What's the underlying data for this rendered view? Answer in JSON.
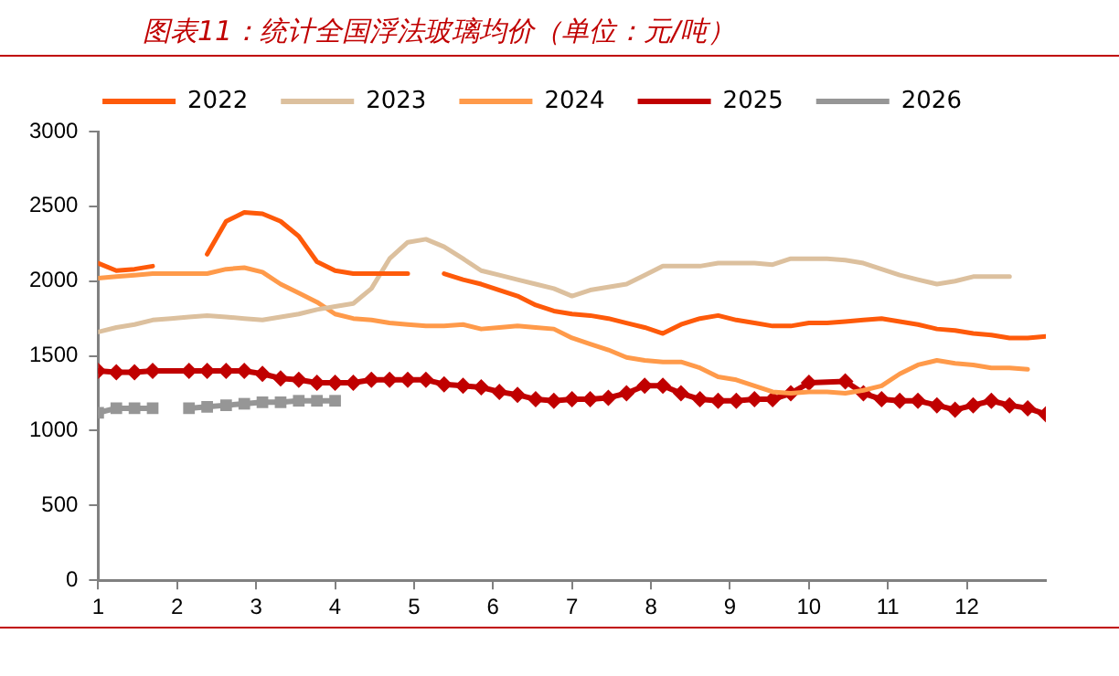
{
  "chart_data": {
    "type": "line",
    "title": "图表11：统计全国浮法玻璃均价（单位：元/吨）",
    "x": [
      1,
      1.23,
      1.46,
      1.69,
      1.92,
      2.15,
      2.38,
      2.62,
      2.85,
      3.08,
      3.31,
      3.54,
      3.77,
      4,
      4.23,
      4.46,
      4.69,
      4.92,
      5.15,
      5.38,
      5.62,
      5.85,
      6.08,
      6.31,
      6.54,
      6.77,
      7,
      7.23,
      7.46,
      7.69,
      7.92,
      8.15,
      8.38,
      8.62,
      8.85,
      9.08,
      9.31,
      9.54,
      9.77,
      10,
      10.23,
      10.46,
      10.69,
      10.92,
      11.15,
      11.38,
      11.62,
      11.85,
      12.08,
      12.31,
      12.54,
      12.77,
      13
    ],
    "xlim": [
      1,
      13
    ],
    "xticks": [
      1,
      2,
      3,
      4,
      5,
      6,
      7,
      8,
      9,
      10,
      11,
      12
    ],
    "ylim": [
      0,
      3000
    ],
    "yticks": [
      0,
      500,
      1000,
      1500,
      2000,
      2500,
      3000
    ],
    "grid": false,
    "legend": "top",
    "marker": "none",
    "line_style": "solid",
    "series": [
      {
        "name": "2022",
        "color": "#fe5a0a",
        "values": [
          2120,
          2070,
          2080,
          2100,
          null,
          null,
          2180,
          2400,
          2460,
          2450,
          2400,
          2300,
          2130,
          2070,
          2050,
          2050,
          2050,
          2050,
          null,
          2050,
          2010,
          1980,
          1940,
          1900,
          1840,
          1800,
          1780,
          1770,
          1750,
          1720,
          1690,
          1650,
          1710,
          1750,
          1770,
          1740,
          1720,
          1700,
          1700,
          1720,
          1720,
          1730,
          1740,
          1750,
          1730,
          1710,
          1680,
          1670,
          1650,
          1640,
          1620,
          1620,
          1630
        ]
      },
      {
        "name": "2023",
        "color": "#dcc09e",
        "values": [
          1660,
          1690,
          1710,
          1740,
          1750,
          1760,
          1770,
          1760,
          1750,
          1740,
          1760,
          1780,
          1810,
          1830,
          1850,
          1950,
          2150,
          2260,
          2280,
          2230,
          2150,
          2070,
          2040,
          2010,
          1980,
          1950,
          1900,
          1940,
          1960,
          1980,
          2040,
          2100,
          2100,
          2100,
          2120,
          2120,
          2120,
          2110,
          2150,
          2150,
          2150,
          2140,
          2120,
          2080,
          2040,
          2010,
          1980,
          2000,
          2030,
          2030,
          2030,
          null,
          null
        ]
      },
      {
        "name": "2024",
        "color": "#ff9a4a",
        "values": [
          2020,
          2030,
          2040,
          2050,
          2050,
          2050,
          2050,
          2080,
          2090,
          2060,
          1980,
          1920,
          1860,
          1780,
          1750,
          1740,
          1720,
          1710,
          1700,
          1700,
          1710,
          1680,
          1690,
          1700,
          1690,
          1680,
          1620,
          1580,
          1540,
          1490,
          1470,
          1460,
          1460,
          1420,
          1360,
          1340,
          1300,
          1260,
          1250,
          1260,
          1260,
          1250,
          1270,
          1300,
          1380,
          1440,
          1470,
          1450,
          1440,
          1420,
          1420,
          1410,
          null
        ]
      },
      {
        "name": "2025",
        "color": "#c00000",
        "marker": "diamond",
        "x": [
          1,
          1.23,
          1.46,
          1.69,
          2.15,
          2.38,
          2.62,
          2.85,
          3.08,
          3.31,
          3.54,
          3.77,
          4,
          4.23,
          4.46,
          4.69,
          4.92,
          5.15,
          5.38,
          5.62,
          5.85,
          6.08,
          6.31,
          6.54,
          6.77,
          7,
          7.23,
          7.46,
          7.69,
          7.92,
          8.15,
          8.38,
          8.62,
          8.85,
          9.08,
          9.31,
          9.54,
          9.77,
          10,
          10.46,
          10.69,
          10.92,
          11.15,
          11.38,
          11.62,
          11.85,
          12.08,
          12.31,
          12.54,
          12.77,
          13
        ],
        "values": [
          1400,
          1390,
          1390,
          1400,
          1400,
          1400,
          1400,
          1400,
          1380,
          1350,
          1340,
          1320,
          1320,
          1320,
          1340,
          1340,
          1340,
          1340,
          1310,
          1300,
          1290,
          1260,
          1240,
          1210,
          1200,
          1210,
          1210,
          1220,
          1250,
          1300,
          1300,
          1250,
          1210,
          1200,
          1200,
          1210,
          1210,
          1250,
          1320,
          1330,
          1250,
          1210,
          1200,
          1200,
          1170,
          1140,
          1170,
          1200,
          1170,
          1150,
          1110
        ]
      },
      {
        "name": "2026",
        "color": "#969696",
        "marker": "square",
        "values": [
          1120,
          1150,
          1150,
          1150,
          null,
          1150,
          1160,
          1170,
          1180,
          1190,
          1190,
          1200,
          1200,
          1200,
          null,
          null,
          null,
          null,
          null,
          null,
          null,
          null,
          null,
          null,
          null,
          null,
          null,
          null,
          null,
          null,
          null,
          null,
          null,
          null,
          null,
          null,
          null,
          null,
          null,
          null,
          null,
          null,
          null,
          null,
          null,
          null,
          null,
          null,
          null,
          null,
          null,
          null,
          null
        ]
      }
    ]
  }
}
